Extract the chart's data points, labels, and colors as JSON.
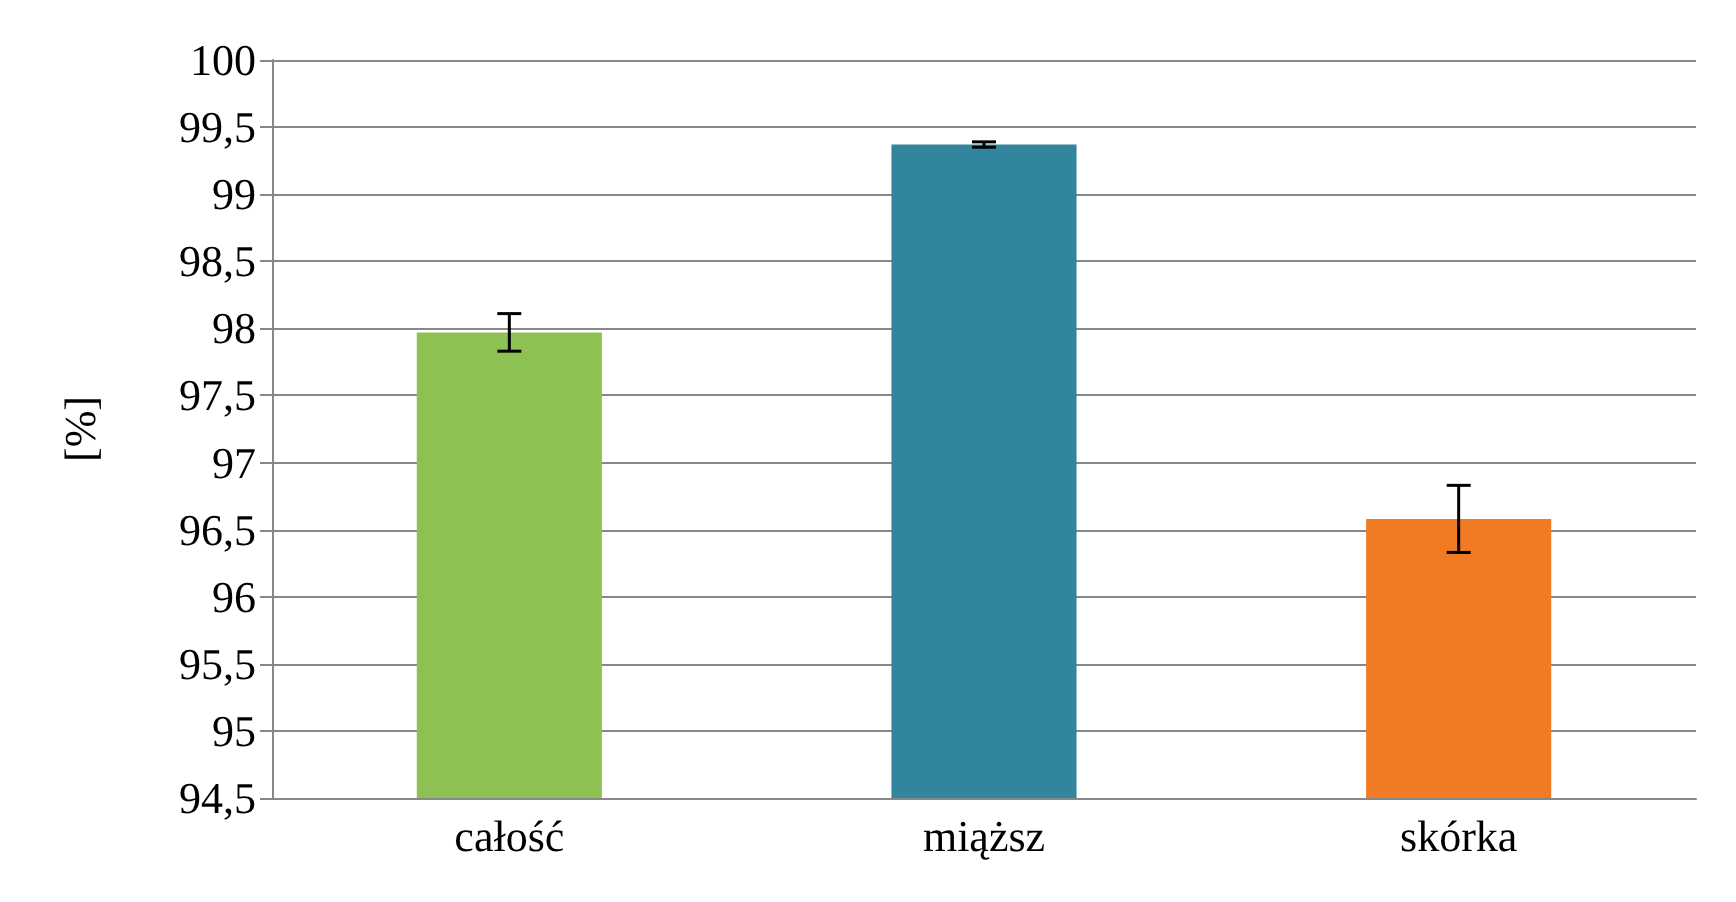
{
  "chart_data": {
    "type": "bar",
    "ylabel": "[%]",
    "categories": [
      "całość",
      "miąższ",
      "skórka"
    ],
    "values": [
      97.97,
      99.37,
      96.58
    ],
    "colors": [
      "#8dc153",
      "#31869e",
      "#f07b24"
    ],
    "errors": [
      0.14,
      0.02,
      0.25
    ],
    "ylim": [
      94.5,
      100
    ],
    "yticks": [
      {
        "value": 94.5,
        "label": "94,5"
      },
      95,
      {
        "value": 95.5,
        "label": "95,5"
      },
      96,
      {
        "value": 96.5,
        "label": "96,5"
      },
      97,
      {
        "value": 97.5,
        "label": "97,5"
      },
      98,
      {
        "value": 98.5,
        "label": "98,5"
      },
      99,
      {
        "value": 99.5,
        "label": "99,5"
      },
      100
    ],
    "grid": "y"
  }
}
